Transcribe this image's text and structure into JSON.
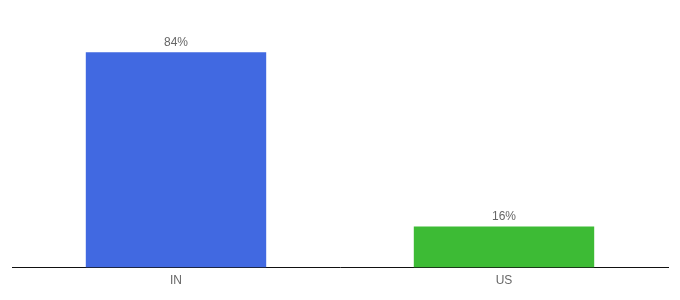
{
  "chart_data": {
    "type": "bar",
    "categories": [
      "IN",
      "US"
    ],
    "values": [
      84,
      16
    ],
    "value_labels": [
      "84%",
      "16%"
    ],
    "colors": [
      "#4169e1",
      "#3dbb35"
    ],
    "ylim": [
      0,
      95
    ],
    "grid": false,
    "data_labels": true,
    "tick_labels": "x"
  }
}
